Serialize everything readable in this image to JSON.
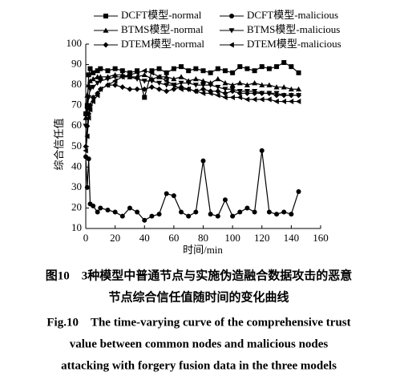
{
  "chart_data": {
    "type": "line",
    "xlabel": "时间/min",
    "ylabel": "综合信任值",
    "xlim": [
      0,
      160
    ],
    "ylim": [
      10,
      100
    ],
    "xticks": [
      0,
      20,
      40,
      60,
      80,
      100,
      120,
      140,
      160
    ],
    "yticks": [
      10,
      20,
      30,
      40,
      50,
      60,
      70,
      80,
      90,
      100
    ],
    "x": [
      0,
      1,
      2,
      3,
      5,
      8,
      10,
      15,
      20,
      25,
      30,
      35,
      40,
      45,
      50,
      55,
      60,
      65,
      70,
      75,
      80,
      85,
      90,
      95,
      100,
      105,
      110,
      115,
      120,
      125,
      130,
      135,
      140,
      145
    ],
    "series": [
      {
        "name": "DCFT模型-normal",
        "color": "#000000",
        "marker": "square",
        "values": [
          66,
          70,
          85,
          88,
          86,
          87,
          88,
          87,
          88,
          87,
          86,
          87,
          74,
          87,
          88,
          86,
          88,
          89,
          87,
          88,
          87,
          86,
          88,
          87,
          86,
          89,
          88,
          87,
          89,
          88,
          89,
          91,
          89,
          86
        ]
      },
      {
        "name": "DCFT模型-malicious",
        "color": "#000000",
        "marker": "circle",
        "values": [
          45,
          30,
          44,
          22,
          21,
          18,
          20,
          19,
          18,
          16,
          20,
          18,
          14,
          16,
          17,
          27,
          26,
          18,
          16,
          18,
          43,
          17,
          16,
          24,
          16,
          18,
          20,
          18,
          48,
          18,
          17,
          18,
          17,
          28
        ]
      },
      {
        "name": "BTMS模型-normal",
        "color": "#000000",
        "marker": "triangle-up",
        "values": [
          64,
          75,
          80,
          82,
          83,
          84,
          84,
          84,
          85,
          85,
          84,
          84,
          85,
          83,
          84,
          84,
          83,
          84,
          82,
          83,
          82,
          81,
          83,
          81,
          80,
          81,
          80,
          81,
          80,
          80,
          79,
          79,
          78,
          78
        ]
      },
      {
        "name": "BTMS模型-malicious",
        "color": "#000000",
        "marker": "triangle-down",
        "values": [
          60,
          68,
          74,
          78,
          79,
          81,
          82,
          83,
          84,
          84,
          84,
          83,
          82,
          82,
          81,
          80,
          80,
          81,
          81,
          80,
          80,
          80,
          79,
          78,
          78,
          77,
          77,
          77,
          76,
          76,
          76,
          75,
          75,
          75
        ]
      },
      {
        "name": "DTEM模型-normal",
        "color": "#000000",
        "marker": "diamond",
        "values": [
          50,
          60,
          66,
          70,
          74,
          76,
          78,
          80,
          80,
          79,
          78,
          78,
          78,
          79,
          78,
          77,
          78,
          79,
          78,
          77,
          78,
          77,
          77,
          76,
          77,
          76,
          76,
          76,
          76,
          76,
          75,
          75,
          75,
          75
        ]
      },
      {
        "name": "DTEM模型-malicious",
        "color": "#000000",
        "marker": "triangle-left",
        "values": [
          48,
          55,
          64,
          68,
          72,
          75,
          78,
          80,
          82,
          84,
          85,
          86,
          87,
          86,
          84,
          82,
          80,
          78,
          78,
          77,
          76,
          76,
          75,
          74,
          74,
          74,
          73,
          73,
          73,
          73,
          72,
          72,
          72,
          72
        ]
      }
    ]
  },
  "caption": {
    "cn": [
      "图10　3种模型中普通节点与实施伪造融合数据攻击的恶意",
      "节点综合信任值随时间的变化曲线"
    ],
    "en": [
      "Fig.10　The time-varying curve of the comprehensive trust",
      "value between common nodes and malicious nodes",
      "attacking with forgery fusion data in the three models"
    ]
  }
}
